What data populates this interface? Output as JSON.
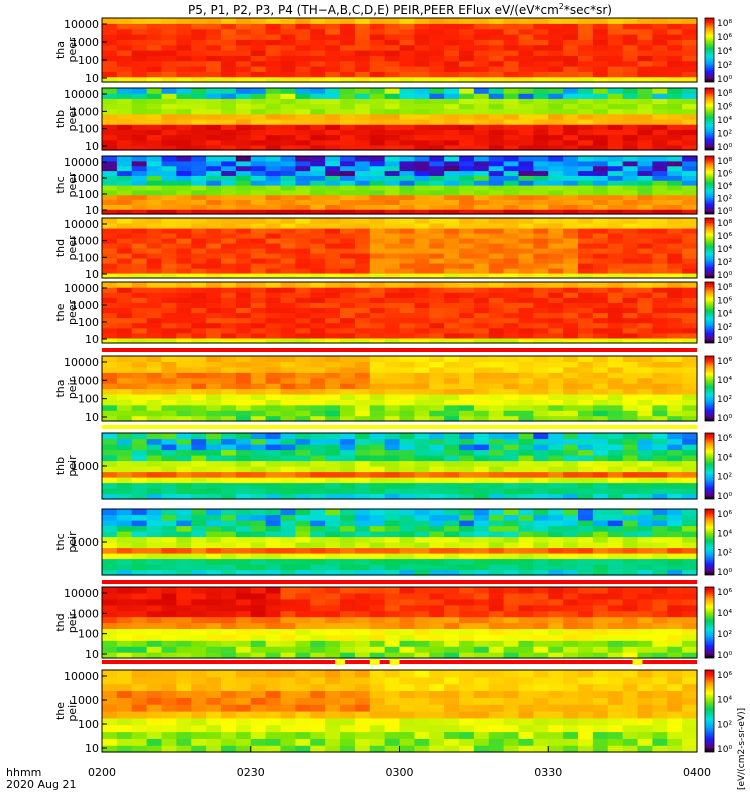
{
  "title_parts": [
    "P5, P1, P2, P3, P4 (TH−A,B,C,D,E) PEIR,PEER EFlux eV/(eV*cm",
    "2",
    "*sec*sr)"
  ],
  "x_corner_label": {
    "line1": "hhmm",
    "line2": "2020 Aug 21"
  },
  "colorbar_unit_label": "[eV/(cm2-s-sr-eV)]",
  "colors": {
    "background": "#ffffff",
    "axis": "#000000",
    "quality_red": "#ff0000",
    "quality_yellow": "#ffff00"
  },
  "chart_data": {
    "type": "heatmap",
    "x": {
      "ticks": [
        "0200",
        "0230",
        "0300",
        "0330",
        "0400"
      ],
      "range": [
        "0200",
        "0400"
      ]
    },
    "panels": [
      {
        "id": "tha-peer",
        "label": [
          "tha",
          "peer"
        ],
        "y_ticks": [
          "10",
          "100",
          "1000",
          "10000"
        ],
        "y_scale": "log",
        "cb_ticks": [
          "10⁰",
          "10²",
          "10⁴",
          "10⁶",
          "10⁸"
        ],
        "profile": "peer_a"
      },
      {
        "id": "thb-peer",
        "label": [
          "thb",
          "peer"
        ],
        "y_ticks": [
          "10",
          "100",
          "1000",
          "10000"
        ],
        "y_scale": "log",
        "cb_ticks": [
          "10⁰",
          "10²",
          "10⁴",
          "10⁶",
          "10⁸"
        ],
        "profile": "peer_b"
      },
      {
        "id": "thc-peer",
        "label": [
          "thc",
          "peer"
        ],
        "y_ticks": [
          "10",
          "100",
          "1000",
          "10000"
        ],
        "y_scale": "log",
        "cb_ticks": [
          "10⁰",
          "10²",
          "10⁴",
          "10⁶",
          "10⁸"
        ],
        "profile": "peer_c"
      },
      {
        "id": "thd-peer",
        "label": [
          "thd",
          "peer"
        ],
        "y_ticks": [
          "10",
          "100",
          "1000",
          "10000"
        ],
        "y_scale": "log",
        "cb_ticks": [
          "10⁰",
          "10²",
          "10⁴",
          "10⁶",
          "10⁸"
        ],
        "profile": "peer_d"
      },
      {
        "id": "the-peer",
        "label": [
          "the",
          "peer"
        ],
        "y_ticks": [
          "10",
          "100",
          "1000",
          "10000"
        ],
        "y_scale": "log",
        "cb_ticks": [
          "10⁰",
          "10²",
          "10⁴",
          "10⁶",
          "10⁸"
        ],
        "profile": "peer_e"
      },
      {
        "id": "tha-peir",
        "label": [
          "tha",
          "peir"
        ],
        "y_ticks": [
          "10",
          "100",
          "1000",
          "10000"
        ],
        "y_scale": "log",
        "cb_ticks": [
          "10⁰",
          "10²",
          "10⁴",
          "10⁶"
        ],
        "profile": "peir_a"
      },
      {
        "id": "thb-peir",
        "label": [
          "thb",
          "peir"
        ],
        "y_ticks": [
          "1000"
        ],
        "y_scale": "log",
        "cb_ticks": [
          "10⁰",
          "10²",
          "10⁴",
          "10⁶"
        ],
        "profile": "peir_b"
      },
      {
        "id": "thc-peir",
        "label": [
          "thc",
          "peir"
        ],
        "y_ticks": [
          "1000"
        ],
        "y_scale": "log",
        "cb_ticks": [
          "10⁰",
          "10²",
          "10⁴",
          "10⁶"
        ],
        "profile": "peir_b"
      },
      {
        "id": "thd-peir",
        "label": [
          "thd",
          "peir"
        ],
        "y_ticks": [
          "10",
          "100",
          "1000",
          "10000"
        ],
        "y_scale": "log",
        "cb_ticks": [
          "10⁰",
          "10²",
          "10⁴",
          "10⁶"
        ],
        "profile": "peir_d"
      },
      {
        "id": "the-peir",
        "label": [
          "the",
          "peir"
        ],
        "y_ticks": [
          "10",
          "100",
          "1000",
          "10000"
        ],
        "y_scale": "log",
        "cb_ticks": [
          "10⁰",
          "10²",
          "10⁴",
          "10⁶"
        ],
        "profile": "peir_a"
      }
    ],
    "quality_bars": [
      {
        "after_panel": "the-peer",
        "color": "red",
        "yellow_intervals": []
      },
      {
        "after_panel": "tha-peir",
        "color": "yellow",
        "yellow_intervals": []
      },
      {
        "after_panel": "thc-peir",
        "color": "red",
        "yellow_intervals": []
      },
      {
        "after_panel": "thd-peir",
        "color": "red",
        "yellow_intervals": [
          [
            "0247",
            "0249"
          ],
          [
            "0254",
            "0256"
          ],
          [
            "0258",
            "0300"
          ],
          [
            "0347",
            "0349"
          ]
        ]
      }
    ]
  }
}
